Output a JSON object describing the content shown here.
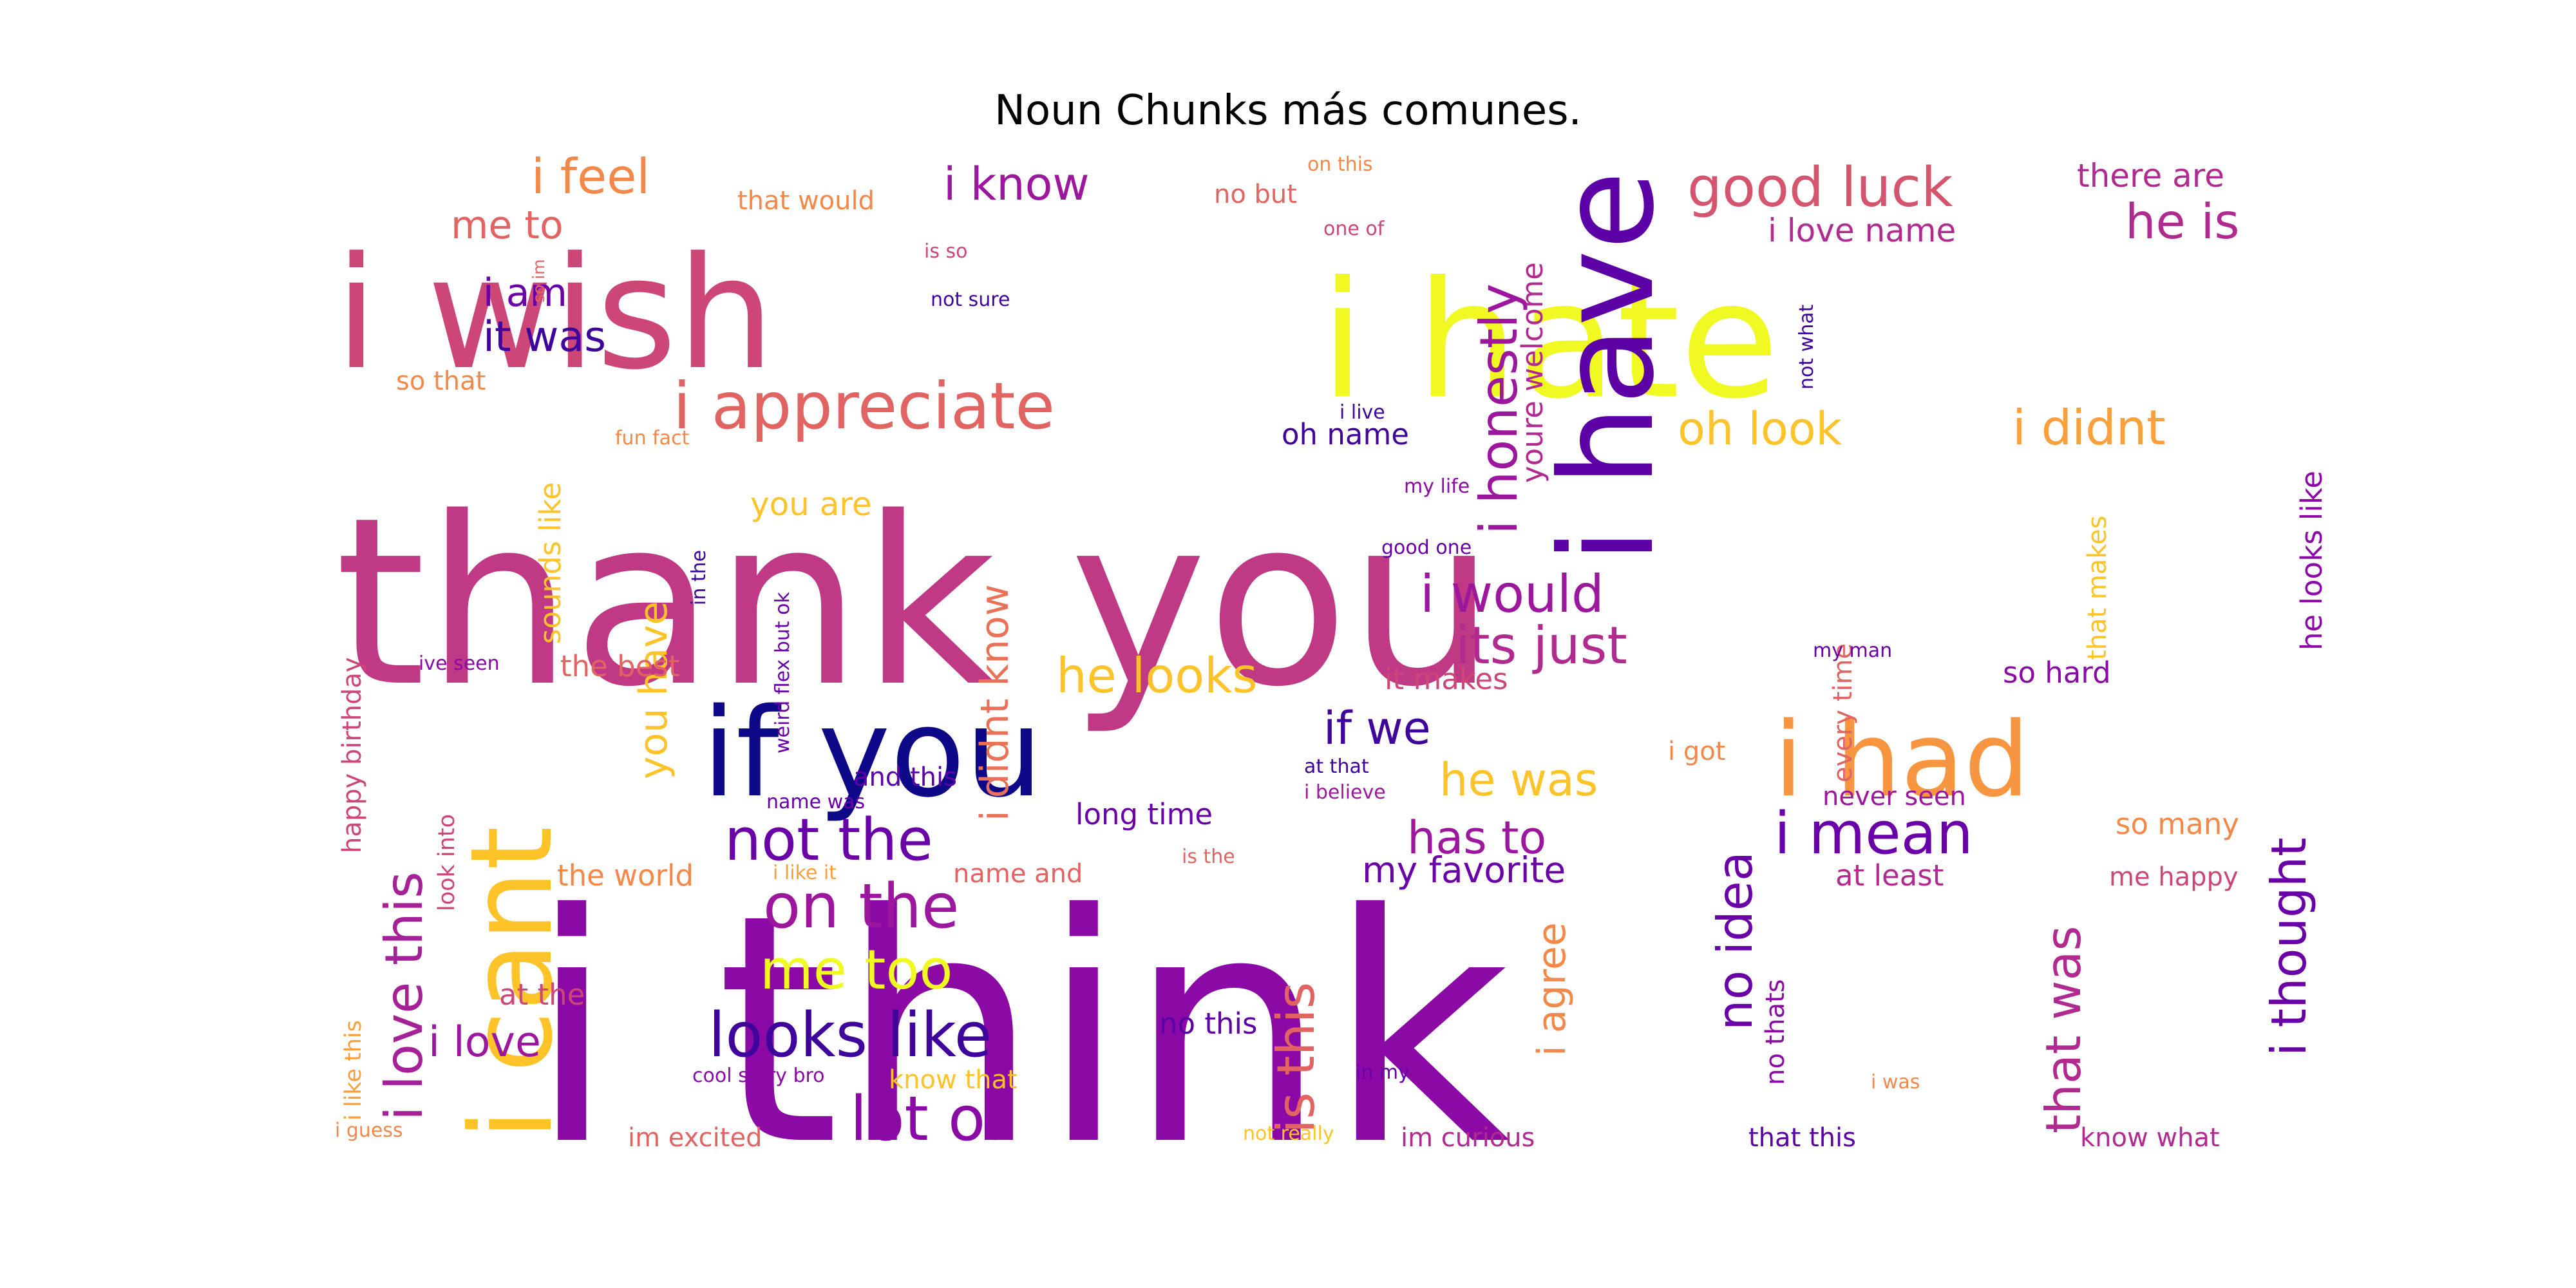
{
  "chart_data": {
    "type": "wordcloud",
    "title": "Noun Chunks más comunes.",
    "colormap": "plasma",
    "words": [
      {
        "text": "i think",
        "color": "#8b0aa5"
      },
      {
        "text": "thank you",
        "color": "#bf3984"
      },
      {
        "text": "i wish",
        "color": "#cc4778"
      },
      {
        "text": "i hate",
        "color": "#f0f921"
      },
      {
        "text": "i have",
        "color": "#5c01a6"
      },
      {
        "text": "if you",
        "color": "#0d0887"
      },
      {
        "text": "i cant",
        "color": "#fdc328"
      },
      {
        "text": "i had",
        "color": "#f89540"
      },
      {
        "text": "i appreciate",
        "color": "#e16462"
      },
      {
        "text": "i love this",
        "color": "#a62098"
      },
      {
        "text": "i honestly",
        "color": "#9c179e"
      },
      {
        "text": "looks like",
        "color": "#3e049c"
      },
      {
        "text": "on the",
        "color": "#9c179e"
      },
      {
        "text": "not the",
        "color": "#6a00a8"
      },
      {
        "text": "i mean",
        "color": "#6a00a8"
      },
      {
        "text": "lot of",
        "color": "#8b0aa5"
      },
      {
        "text": "me too",
        "color": "#f0f921"
      },
      {
        "text": "i thought",
        "color": "#6a00a8"
      },
      {
        "text": "i would",
        "color": "#9c179e"
      },
      {
        "text": "good luck",
        "color": "#d5546e"
      },
      {
        "text": "its just",
        "color": "#b12a90"
      },
      {
        "text": "no idea",
        "color": "#6a00a8"
      },
      {
        "text": "is this",
        "color": "#e16462"
      },
      {
        "text": "that was",
        "color": "#b12a90"
      },
      {
        "text": "he is",
        "color": "#b12a90"
      },
      {
        "text": "i didnt",
        "color": "#fb9f3a"
      },
      {
        "text": "he looks",
        "color": "#fdc328"
      },
      {
        "text": "i feel",
        "color": "#f48849"
      },
      {
        "text": "i know",
        "color": "#9c179e"
      },
      {
        "text": "oh look",
        "color": "#fdc328"
      },
      {
        "text": "i didnt know",
        "color": "#e97158"
      },
      {
        "text": "if we",
        "color": "#3e049c"
      },
      {
        "text": "he was",
        "color": "#fdc328"
      },
      {
        "text": "has to",
        "color": "#9c179e"
      },
      {
        "text": "i am",
        "color": "#6a00a8"
      },
      {
        "text": "it was",
        "color": "#3e049c"
      },
      {
        "text": "you have",
        "color": "#fdc328"
      },
      {
        "text": "i love",
        "color": "#9c179e"
      },
      {
        "text": "i agree",
        "color": "#f48849"
      },
      {
        "text": "my favorite",
        "color": "#6a00a8"
      },
      {
        "text": "me to",
        "color": "#e16462"
      },
      {
        "text": "there are",
        "color": "#b12a90"
      },
      {
        "text": "i love name",
        "color": "#b12a90"
      },
      {
        "text": "youre welcome",
        "color": "#b12a90"
      },
      {
        "text": "sounds like",
        "color": "#fdc328"
      },
      {
        "text": "he looks like",
        "color": "#8b0aa5"
      },
      {
        "text": "you are",
        "color": "#fdc328"
      },
      {
        "text": "the best",
        "color": "#e16462"
      },
      {
        "text": "it makes",
        "color": "#cc4778"
      },
      {
        "text": "so hard",
        "color": "#8b0aa5"
      },
      {
        "text": "long time",
        "color": "#6a00a8"
      },
      {
        "text": "at least",
        "color": "#b12a90"
      },
      {
        "text": "so many",
        "color": "#f48849"
      },
      {
        "text": "the world",
        "color": "#f48849"
      },
      {
        "text": "at the",
        "color": "#cc4778"
      },
      {
        "text": "happy birthday",
        "color": "#cc4778"
      },
      {
        "text": "im excited",
        "color": "#e16462"
      },
      {
        "text": "im curious",
        "color": "#b12a90"
      },
      {
        "text": "that this",
        "color": "#5c01a6"
      },
      {
        "text": "know what",
        "color": "#b12a90"
      },
      {
        "text": "no this",
        "color": "#5c01a6"
      },
      {
        "text": "oh name",
        "color": "#3e049c"
      },
      {
        "text": "and this",
        "color": "#5c01a6"
      },
      {
        "text": "never seen",
        "color": "#9c179e"
      },
      {
        "text": "me happy",
        "color": "#cc4778"
      },
      {
        "text": "name and",
        "color": "#e16462"
      },
      {
        "text": "know that",
        "color": "#fdc328"
      },
      {
        "text": "no thats",
        "color": "#8b0aa5"
      },
      {
        "text": "that makes",
        "color": "#fdc328"
      },
      {
        "text": "every time",
        "color": "#e16462"
      },
      {
        "text": "so that",
        "color": "#f48849"
      },
      {
        "text": "that would",
        "color": "#f48849"
      },
      {
        "text": "no but",
        "color": "#e16462"
      },
      {
        "text": "look into",
        "color": "#cc4778"
      },
      {
        "text": "i like this",
        "color": "#fb9f3a"
      },
      {
        "text": "i got",
        "color": "#f48849"
      },
      {
        "text": "cool story bro",
        "color": "#8b0aa5"
      },
      {
        "text": "not sure",
        "color": "#3e049c"
      },
      {
        "text": "on this",
        "color": "#f48849"
      },
      {
        "text": "one of",
        "color": "#cc4778"
      },
      {
        "text": "is so",
        "color": "#cc4778"
      },
      {
        "text": "so im",
        "color": "#e16462"
      },
      {
        "text": "fun fact",
        "color": "#f48849"
      },
      {
        "text": "my life",
        "color": "#8b0aa5"
      },
      {
        "text": "good one",
        "color": "#6a00a8"
      },
      {
        "text": "i live",
        "color": "#3e049c"
      },
      {
        "text": "in the",
        "color": "#3e049c"
      },
      {
        "text": "weird flex but ok",
        "color": "#6a00a8"
      },
      {
        "text": "ive seen",
        "color": "#8b0aa5"
      },
      {
        "text": "name was",
        "color": "#6a00a8"
      },
      {
        "text": "i like it",
        "color": "#fb9f3a"
      },
      {
        "text": "is the",
        "color": "#e16462"
      },
      {
        "text": "at that",
        "color": "#3e049c"
      },
      {
        "text": "i believe",
        "color": "#9c179e"
      },
      {
        "text": "my man",
        "color": "#6a00a8"
      },
      {
        "text": "not what",
        "color": "#3e049c"
      },
      {
        "text": "in my",
        "color": "#6a00a8"
      },
      {
        "text": "i was",
        "color": "#f48849"
      },
      {
        "text": "not really",
        "color": "#fdc328"
      },
      {
        "text": "i guess",
        "color": "#f48849"
      }
    ]
  }
}
